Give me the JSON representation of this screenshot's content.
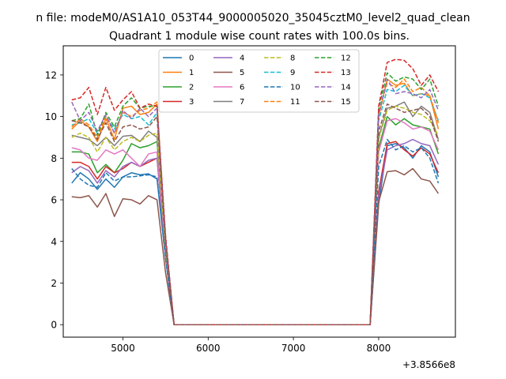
{
  "figure": {
    "suptitle": "n file: modeM0/AS1A10_053T44_9000005020_35045cztM0_level2_quad_clean",
    "title": "Quadrant 1 module wise count rates with 100.0s bins.",
    "x_offset_label": "+3.8566e8"
  },
  "chart_data": {
    "type": "line",
    "title": "Quadrant 1 module wise count rates with 100.0s bins.",
    "xlabel": "",
    "ylabel": "",
    "x_offset": 385660000,
    "xlim": [
      4300,
      8900
    ],
    "ylim": [
      -0.6,
      13.4
    ],
    "xticks": [
      5000,
      6000,
      7000,
      8000
    ],
    "xtick_labels": [
      "5000",
      "6000",
      "7000",
      "8000"
    ],
    "yticks": [
      0,
      2,
      4,
      6,
      8,
      10,
      12
    ],
    "ytick_labels": [
      "0",
      "2",
      "4",
      "6",
      "8",
      "10",
      "12"
    ],
    "grid": false,
    "legend_position": "top-center",
    "legend_ncol": 4,
    "x": [
      4400,
      4500,
      4600,
      4700,
      4800,
      4900,
      5000,
      5100,
      5200,
      5300,
      5400,
      5500,
      5600,
      5700,
      5800,
      5900,
      6000,
      6100,
      6200,
      6300,
      6400,
      6500,
      6600,
      6700,
      6800,
      6900,
      7000,
      7100,
      7200,
      7300,
      7400,
      7500,
      7600,
      7700,
      7800,
      7900,
      8000,
      8100,
      8200,
      8300,
      8400,
      8500,
      8600,
      8700
    ],
    "series": [
      {
        "name": "0",
        "color": "#1f77b4",
        "dash": "solid",
        "values": [
          6.8,
          7.3,
          7.0,
          6.5,
          7.0,
          6.6,
          7.1,
          7.3,
          7.2,
          7.25,
          7.0,
          3.2,
          0,
          0,
          0,
          0,
          0,
          0,
          0,
          0,
          0,
          0,
          0,
          0,
          0,
          0,
          0,
          0,
          0,
          0,
          0,
          0,
          0,
          0,
          0,
          0,
          5.8,
          8.6,
          8.7,
          8.5,
          8.0,
          8.6,
          8.3,
          7.1
        ]
      },
      {
        "name": "1",
        "color": "#ff7f0e",
        "dash": "solid",
        "values": [
          9.4,
          9.8,
          9.5,
          8.8,
          9.9,
          8.9,
          10.4,
          10.5,
          10.1,
          10.2,
          10.6,
          3.8,
          0,
          0,
          0,
          0,
          0,
          0,
          0,
          0,
          0,
          0,
          0,
          0,
          0,
          0,
          0,
          0,
          0,
          0,
          0,
          0,
          0,
          0,
          0,
          0,
          10.0,
          11.8,
          11.5,
          11.6,
          11.0,
          11.1,
          11.0,
          9.4
        ]
      },
      {
        "name": "2",
        "color": "#2ca02c",
        "dash": "solid",
        "values": [
          8.3,
          8.3,
          8.2,
          7.3,
          7.7,
          7.3,
          7.9,
          8.7,
          8.5,
          8.6,
          8.8,
          3.6,
          0,
          0,
          0,
          0,
          0,
          0,
          0,
          0,
          0,
          0,
          0,
          0,
          0,
          0,
          0,
          0,
          0,
          0,
          0,
          0,
          0,
          0,
          0,
          0,
          8.5,
          10.0,
          9.6,
          9.9,
          9.6,
          9.5,
          9.4,
          8.2
        ]
      },
      {
        "name": "3",
        "color": "#d62728",
        "dash": "solid",
        "values": [
          7.8,
          7.8,
          7.6,
          7.0,
          7.6,
          7.3,
          7.5,
          7.8,
          7.6,
          7.8,
          8.0,
          3.3,
          0,
          0,
          0,
          0,
          0,
          0,
          0,
          0,
          0,
          0,
          0,
          0,
          0,
          0,
          0,
          0,
          0,
          0,
          0,
          0,
          0,
          0,
          0,
          0,
          6.4,
          8.7,
          8.8,
          8.4,
          8.1,
          8.5,
          8.2,
          7.3
        ]
      },
      {
        "name": "4",
        "color": "#9467bd",
        "dash": "solid",
        "values": [
          7.3,
          7.6,
          7.4,
          6.8,
          7.4,
          7.1,
          7.6,
          7.8,
          7.6,
          7.9,
          8.0,
          3.5,
          0,
          0,
          0,
          0,
          0,
          0,
          0,
          0,
          0,
          0,
          0,
          0,
          0,
          0,
          0,
          0,
          0,
          0,
          0,
          0,
          0,
          0,
          0,
          0,
          6.2,
          8.4,
          8.6,
          8.7,
          8.9,
          8.7,
          8.6,
          7.7
        ]
      },
      {
        "name": "5",
        "color": "#8c564b",
        "dash": "solid",
        "values": [
          6.15,
          6.1,
          6.2,
          5.65,
          6.3,
          5.2,
          6.05,
          6.0,
          5.8,
          6.2,
          6.0,
          2.5,
          0,
          0,
          0,
          0,
          0,
          0,
          0,
          0,
          0,
          0,
          0,
          0,
          0,
          0,
          0,
          0,
          0,
          0,
          0,
          0,
          0,
          0,
          0,
          0,
          5.9,
          7.35,
          7.4,
          7.2,
          7.5,
          7.0,
          6.9,
          6.3
        ]
      },
      {
        "name": "6",
        "color": "#e377c2",
        "dash": "solid",
        "values": [
          8.5,
          8.4,
          8.0,
          7.9,
          8.4,
          8.2,
          8.4,
          8.0,
          7.6,
          8.2,
          8.3,
          3.4,
          0,
          0,
          0,
          0,
          0,
          0,
          0,
          0,
          0,
          0,
          0,
          0,
          0,
          0,
          0,
          0,
          0,
          0,
          0,
          0,
          0,
          0,
          0,
          0,
          8.3,
          9.8,
          9.9,
          9.7,
          9.4,
          9.5,
          9.3,
          8.4
        ]
      },
      {
        "name": "7",
        "color": "#7f7f7f",
        "dash": "solid",
        "values": [
          9.1,
          9.0,
          8.9,
          8.6,
          9.0,
          8.6,
          9.05,
          9.1,
          8.8,
          9.3,
          9.0,
          3.7,
          0,
          0,
          0,
          0,
          0,
          0,
          0,
          0,
          0,
          0,
          0,
          0,
          0,
          0,
          0,
          0,
          0,
          0,
          0,
          0,
          0,
          0,
          0,
          0,
          9.0,
          10.4,
          10.5,
          10.7,
          10.0,
          10.5,
          10.2,
          8.9
        ]
      },
      {
        "name": "8",
        "color": "#bcbd22",
        "dash": "dashed",
        "values": [
          9.0,
          9.2,
          9.0,
          8.3,
          9.0,
          8.4,
          8.8,
          9.0,
          8.8,
          9.1,
          9.2,
          3.7,
          0,
          0,
          0,
          0,
          0,
          0,
          0,
          0,
          0,
          0,
          0,
          0,
          0,
          0,
          0,
          0,
          0,
          0,
          0,
          0,
          0,
          0,
          0,
          0,
          8.9,
          10.3,
          10.5,
          10.4,
          10.2,
          10.1,
          9.8,
          9.1
        ]
      },
      {
        "name": "9",
        "color": "#17becf",
        "dash": "dashed",
        "values": [
          9.6,
          9.7,
          9.9,
          9.2,
          10.0,
          9.4,
          10.1,
          9.9,
          10.0,
          9.6,
          10.2,
          4.0,
          0,
          0,
          0,
          0,
          0,
          0,
          0,
          0,
          0,
          0,
          0,
          0,
          0,
          0,
          0,
          0,
          0,
          0,
          0,
          0,
          0,
          0,
          0,
          0,
          9.8,
          11.3,
          11.2,
          11.5,
          11.0,
          11.1,
          10.9,
          9.8
        ]
      },
      {
        "name": "10",
        "color": "#1f77b4",
        "dash": "dashed",
        "values": [
          7.5,
          7.0,
          6.7,
          6.6,
          7.3,
          6.9,
          7.1,
          7.1,
          7.15,
          7.2,
          7.1,
          3.2,
          0,
          0,
          0,
          0,
          0,
          0,
          0,
          0,
          0,
          0,
          0,
          0,
          0,
          0,
          0,
          0,
          0,
          0,
          0,
          0,
          0,
          0,
          0,
          0,
          7.6,
          8.9,
          8.4,
          8.6,
          8.3,
          8.5,
          8.0,
          6.8
        ]
      },
      {
        "name": "11",
        "color": "#ff7f0e",
        "dash": "dashed",
        "values": [
          9.5,
          9.9,
          9.6,
          9.0,
          10.0,
          9.2,
          10.2,
          10.0,
          10.3,
          10.4,
          10.7,
          4.1,
          0,
          0,
          0,
          0,
          0,
          0,
          0,
          0,
          0,
          0,
          0,
          0,
          0,
          0,
          0,
          0,
          0,
          0,
          0,
          0,
          0,
          0,
          0,
          0,
          10.2,
          11.6,
          11.4,
          11.8,
          11.2,
          11.4,
          11.0,
          9.7
        ]
      },
      {
        "name": "12",
        "color": "#2ca02c",
        "dash": "dashed",
        "values": [
          9.8,
          9.9,
          10.6,
          9.1,
          10.2,
          9.5,
          10.5,
          10.9,
          10.4,
          10.5,
          10.5,
          4.2,
          0,
          0,
          0,
          0,
          0,
          0,
          0,
          0,
          0,
          0,
          0,
          0,
          0,
          0,
          0,
          0,
          0,
          0,
          0,
          0,
          0,
          0,
          0,
          0,
          10.4,
          12.1,
          11.7,
          11.9,
          11.8,
          11.3,
          11.8,
          10.5
        ]
      },
      {
        "name": "13",
        "color": "#d62728",
        "dash": "dashed",
        "values": [
          10.8,
          10.9,
          11.4,
          10.1,
          11.4,
          10.3,
          10.8,
          11.2,
          10.4,
          10.6,
          10.5,
          4.3,
          0,
          0,
          0,
          0,
          0,
          0,
          0,
          0,
          0,
          0,
          0,
          0,
          0,
          0,
          0,
          0,
          0,
          0,
          0,
          0,
          0,
          0,
          0,
          0,
          10.5,
          12.6,
          12.75,
          12.7,
          12.3,
          11.5,
          12.0,
          11.2
        ]
      },
      {
        "name": "14",
        "color": "#9467bd",
        "dash": "dashed",
        "values": [
          10.7,
          9.8,
          10.2,
          9.3,
          10.1,
          9.2,
          10.3,
          9.9,
          10.4,
          10.0,
          10.4,
          4.1,
          0,
          0,
          0,
          0,
          0,
          0,
          0,
          0,
          0,
          0,
          0,
          0,
          0,
          0,
          0,
          0,
          0,
          0,
          0,
          0,
          0,
          0,
          0,
          0,
          10.1,
          11.8,
          11.1,
          11.2,
          11.1,
          10.9,
          11.3,
          10.3
        ]
      },
      {
        "name": "15",
        "color": "#8c564b",
        "dash": "dashed",
        "values": [
          9.8,
          9.7,
          9.5,
          8.9,
          9.7,
          8.8,
          9.5,
          9.6,
          9.4,
          9.5,
          10.0,
          3.9,
          0,
          0,
          0,
          0,
          0,
          0,
          0,
          0,
          0,
          0,
          0,
          0,
          0,
          0,
          0,
          0,
          0,
          0,
          0,
          0,
          0,
          0,
          0,
          0,
          9.3,
          10.6,
          10.4,
          10.2,
          10.3,
          10.4,
          10.0,
          8.8
        ]
      }
    ]
  }
}
